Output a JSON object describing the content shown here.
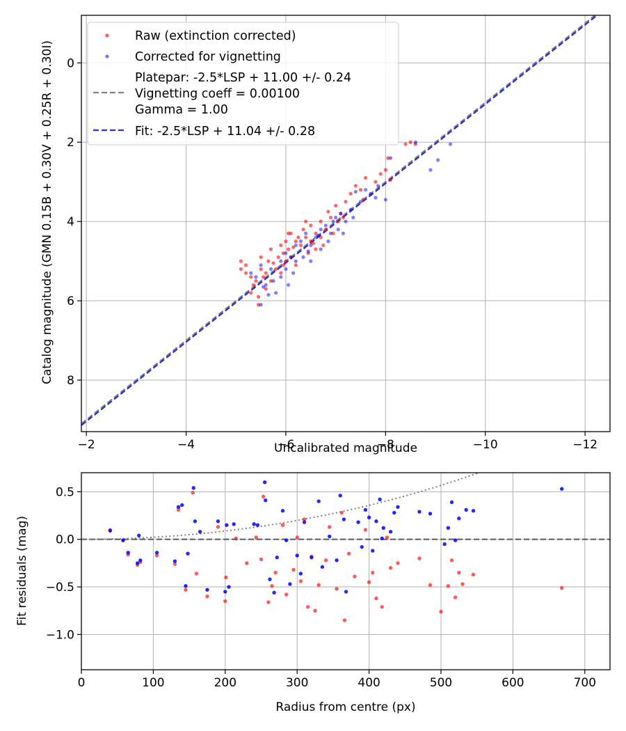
{
  "chart_data": [
    {
      "type": "scatter",
      "xlabel": "Uncalibrated magnitude",
      "ylabel": "Catalog magnitude (GMN 0.15B + 0.30V + 0.25R + 0.30I)",
      "xlim": [
        -1.9,
        -12.5
      ],
      "ylim": [
        9.3,
        -1.2
      ],
      "x_ticks": [
        -2,
        -4,
        -6,
        -8,
        -10,
        -12
      ],
      "x_tick_labels": [
        "−2",
        "−4",
        "−6",
        "−8",
        "−10",
        "−12"
      ],
      "y_ticks": [
        0,
        2,
        4,
        6,
        8
      ],
      "y_tick_labels": [
        "0",
        "2",
        "4",
        "6",
        "8"
      ],
      "grid": true,
      "legend_position": "top-left",
      "legend": {
        "raw": "Raw (extinction corrected)",
        "corrected": "Corrected for vignetting",
        "platepar_lines": [
          "Platepar: -2.5*LSP + 11.00 +/- 0.24",
          "Vignetting coeff = 0.00100",
          "Gamma = 1.00"
        ],
        "fit": "Fit: -2.5*LSP + 11.04 +/- 0.28"
      },
      "lines": [
        {
          "name": "Platepar",
          "slope": -2.5,
          "intercept": 11.0,
          "color": "#7f7f7f"
        },
        {
          "name": "Fit",
          "slope": -2.5,
          "intercept": 11.04,
          "color": "#2b2bd8"
        }
      ],
      "series": [
        {
          "name": "Raw (extinction corrected)",
          "color": "#ff0000",
          "points": [
            [
              -5.1,
              5.0
            ],
            [
              -5.1,
              5.2
            ],
            [
              -5.2,
              5.3
            ],
            [
              -5.2,
              5.1
            ],
            [
              -5.3,
              5.4
            ],
            [
              -5.35,
              5.6
            ],
            [
              -5.4,
              5.5
            ],
            [
              -5.45,
              6.1
            ],
            [
              -5.5,
              5.2
            ],
            [
              -5.5,
              4.9
            ],
            [
              -5.55,
              5.4
            ],
            [
              -5.6,
              5.3
            ],
            [
              -5.65,
              5.0
            ],
            [
              -5.7,
              4.7
            ],
            [
              -5.7,
              5.5
            ],
            [
              -5.8,
              5.2
            ],
            [
              -5.85,
              4.9
            ],
            [
              -5.9,
              4.6
            ],
            [
              -5.9,
              5.3
            ],
            [
              -5.95,
              4.8
            ],
            [
              -6.0,
              4.5
            ],
            [
              -6.0,
              5.0
            ],
            [
              -6.05,
              4.7
            ],
            [
              -6.1,
              4.3
            ],
            [
              -6.1,
              4.9
            ],
            [
              -6.2,
              4.5
            ],
            [
              -6.2,
              5.1
            ],
            [
              -6.25,
              4.4
            ],
            [
              -6.3,
              4.6
            ],
            [
              -6.35,
              4.2
            ],
            [
              -6.4,
              4.4
            ],
            [
              -6.45,
              4.8
            ],
            [
              -6.5,
              4.1
            ],
            [
              -6.5,
              4.5
            ],
            [
              -6.6,
              4.3
            ],
            [
              -6.6,
              4.7
            ],
            [
              -6.7,
              4.0
            ],
            [
              -6.7,
              4.4
            ],
            [
              -6.8,
              4.2
            ],
            [
              -6.9,
              3.9
            ],
            [
              -6.95,
              4.3
            ],
            [
              -7.0,
              3.6
            ],
            [
              -7.05,
              4.0
            ],
            [
              -7.1,
              3.8
            ],
            [
              -7.2,
              3.5
            ],
            [
              -7.3,
              3.3
            ],
            [
              -7.4,
              3.1
            ],
            [
              -7.5,
              3.2
            ],
            [
              -7.6,
              2.9
            ],
            [
              -7.8,
              3.0
            ],
            [
              -7.9,
              2.8
            ],
            [
              -8.0,
              2.7
            ],
            [
              -8.05,
              2.4
            ],
            [
              -8.1,
              2.95
            ],
            [
              -8.4,
              2.05
            ],
            [
              -8.5,
              2.0
            ],
            [
              -8.6,
              2.05
            ],
            [
              -5.3,
              5.8
            ],
            [
              -5.6,
              5.7
            ],
            [
              -5.95,
              5.1
            ],
            [
              -6.15,
              4.65
            ],
            [
              -6.55,
              4.55
            ],
            [
              -6.85,
              3.75
            ],
            [
              -7.15,
              3.9
            ],
            [
              -5.45,
              5.9
            ],
            [
              -6.4,
              4.0
            ],
            [
              -7.55,
              3.45
            ],
            [
              -6.75,
              4.6
            ],
            [
              -5.75,
              5.05
            ],
            [
              -6.05,
              4.3
            ]
          ]
        },
        {
          "name": "Corrected for vignetting",
          "color": "#0000ff",
          "points": [
            [
              -5.3,
              5.3
            ],
            [
              -5.4,
              5.4
            ],
            [
              -5.5,
              5.1
            ],
            [
              -5.5,
              6.1
            ],
            [
              -5.6,
              5.6
            ],
            [
              -5.7,
              5.2
            ],
            [
              -5.75,
              5.5
            ],
            [
              -5.8,
              5.8
            ],
            [
              -5.9,
              5.0
            ],
            [
              -5.9,
              5.4
            ],
            [
              -6.0,
              4.8
            ],
            [
              -6.0,
              5.2
            ],
            [
              -6.05,
              5.6
            ],
            [
              -6.1,
              4.9
            ],
            [
              -6.2,
              4.6
            ],
            [
              -6.2,
              5.0
            ],
            [
              -6.3,
              4.5
            ],
            [
              -6.35,
              4.9
            ],
            [
              -6.4,
              4.3
            ],
            [
              -6.5,
              4.6
            ],
            [
              -6.5,
              5.0
            ],
            [
              -6.6,
              4.4
            ],
            [
              -6.7,
              4.2
            ],
            [
              -6.7,
              4.7
            ],
            [
              -6.8,
              4.1
            ],
            [
              -6.85,
              4.5
            ],
            [
              -6.9,
              4.3
            ],
            [
              -7.0,
              3.9
            ],
            [
              -7.05,
              4.2
            ],
            [
              -7.1,
              3.8
            ],
            [
              -7.2,
              4.0
            ],
            [
              -7.3,
              3.7
            ],
            [
              -7.35,
              3.9
            ],
            [
              -7.5,
              3.5
            ],
            [
              -7.6,
              3.2
            ],
            [
              -7.7,
              3.3
            ],
            [
              -7.8,
              3.4
            ],
            [
              -7.85,
              3.1
            ],
            [
              -8.0,
              3.45
            ],
            [
              -8.1,
              2.4
            ],
            [
              -8.6,
              2.0
            ],
            [
              -8.9,
              2.7
            ],
            [
              -9.05,
              2.45
            ],
            [
              -9.3,
              2.05
            ],
            [
              -5.55,
              5.65
            ],
            [
              -6.45,
              4.75
            ],
            [
              -6.95,
              4.0
            ],
            [
              -7.4,
              3.25
            ],
            [
              -6.15,
              5.3
            ],
            [
              -5.65,
              5.85
            ],
            [
              -6.65,
              4.35
            ],
            [
              -7.15,
              4.3
            ]
          ]
        }
      ]
    },
    {
      "type": "scatter",
      "xlabel": "Radius from centre (px)",
      "ylabel": "Fit residuals (mag)",
      "xlim": [
        0,
        735
      ],
      "ylim": [
        -1.37,
        0.7
      ],
      "x_ticks": [
        0,
        100,
        200,
        300,
        400,
        500,
        600,
        700
      ],
      "x_tick_labels": [
        "0",
        "100",
        "200",
        "300",
        "400",
        "500",
        "600",
        "700"
      ],
      "y_ticks": [
        0.5,
        0.0,
        -0.5,
        -1.0
      ],
      "y_tick_labels": [
        "0.5",
        "0.0",
        "−0.5",
        "−1.0"
      ],
      "grid": true,
      "lines": [
        {
          "name": "zero",
          "style": "dashed",
          "color": "#606060",
          "value": 0
        },
        {
          "name": "vignetting curve",
          "style": "dotted",
          "color": "#808080",
          "formula": "-2.5*log10(cos(0.001*r)^4)"
        }
      ],
      "series": [
        {
          "name": "Raw",
          "color": "#ff0000",
          "points": [
            [
              40,
              0.1
            ],
            [
              58,
              -0.01
            ],
            [
              65,
              -0.16
            ],
            [
              78,
              -0.27
            ],
            [
              82,
              -0.24
            ],
            [
              105,
              -0.17
            ],
            [
              130,
              -0.26
            ],
            [
              135,
              0.31
            ],
            [
              145,
              -0.53
            ],
            [
              155,
              0.49
            ],
            [
              160,
              -0.36
            ],
            [
              175,
              -0.6
            ],
            [
              190,
              0.13
            ],
            [
              200,
              -0.65
            ],
            [
              201,
              -0.4
            ],
            [
              215,
              0.01
            ],
            [
              230,
              -0.25
            ],
            [
              243,
              0.02
            ],
            [
              250,
              -0.21
            ],
            [
              253,
              0.45
            ],
            [
              260,
              -0.66
            ],
            [
              265,
              -0.49
            ],
            [
              270,
              -0.35
            ],
            [
              280,
              0.15
            ],
            [
              285,
              -0.58
            ],
            [
              295,
              -0.32
            ],
            [
              300,
              0.02
            ],
            [
              305,
              -0.44
            ],
            [
              310,
              0.21
            ],
            [
              315,
              -0.71
            ],
            [
              320,
              -0.18
            ],
            [
              325,
              -0.75
            ],
            [
              330,
              -0.48
            ],
            [
              340,
              -0.22
            ],
            [
              345,
              0.13
            ],
            [
              355,
              -0.52
            ],
            [
              362,
              0.28
            ],
            [
              366,
              -0.85
            ],
            [
              372,
              -0.15
            ],
            [
              380,
              -0.39
            ],
            [
              395,
              0.1
            ],
            [
              400,
              -0.45
            ],
            [
              405,
              -0.35
            ],
            [
              410,
              -0.62
            ],
            [
              418,
              -0.71
            ],
            [
              425,
              0.02
            ],
            [
              430,
              -0.3
            ],
            [
              440,
              -0.25
            ],
            [
              470,
              -0.2
            ],
            [
              485,
              -0.48
            ],
            [
              500,
              -0.76
            ],
            [
              510,
              -0.49
            ],
            [
              515,
              -0.22
            ],
            [
              520,
              -0.61
            ],
            [
              525,
              -0.35
            ],
            [
              530,
              -0.47
            ],
            [
              545,
              -0.37
            ],
            [
              668,
              -0.51
            ]
          ]
        },
        {
          "name": "Corrected",
          "color": "#0000ff",
          "points": [
            [
              40,
              0.09
            ],
            [
              58,
              -0.01
            ],
            [
              65,
              -0.14
            ],
            [
              78,
              -0.25
            ],
            [
              80,
              0.04
            ],
            [
              82,
              -0.22
            ],
            [
              105,
              -0.14
            ],
            [
              130,
              -0.23
            ],
            [
              135,
              0.34
            ],
            [
              140,
              0.36
            ],
            [
              145,
              -0.49
            ],
            [
              148,
              -0.15
            ],
            [
              156,
              0.54
            ],
            [
              158,
              0.19
            ],
            [
              165,
              0.08
            ],
            [
              175,
              -0.53
            ],
            [
              190,
              0.19
            ],
            [
              200,
              -0.55
            ],
            [
              202,
              0.15
            ],
            [
              205,
              -0.5
            ],
            [
              212,
              0.16
            ],
            [
              240,
              0.16
            ],
            [
              245,
              0.15
            ],
            [
              255,
              0.6
            ],
            [
              256,
              0.41
            ],
            [
              262,
              -0.42
            ],
            [
              268,
              -0.56
            ],
            [
              272,
              -0.19
            ],
            [
              280,
              0.3
            ],
            [
              285,
              -0.01
            ],
            [
              290,
              -0.47
            ],
            [
              300,
              -0.17
            ],
            [
              305,
              -0.36
            ],
            [
              310,
              0.18
            ],
            [
              320,
              -0.19
            ],
            [
              330,
              0.4
            ],
            [
              335,
              -0.29
            ],
            [
              345,
              0.03
            ],
            [
              355,
              -0.22
            ],
            [
              360,
              0.46
            ],
            [
              365,
              0.21
            ],
            [
              368,
              -0.55
            ],
            [
              385,
              0.18
            ],
            [
              390,
              -0.08
            ],
            [
              395,
              0.31
            ],
            [
              400,
              0.23
            ],
            [
              405,
              -0.12
            ],
            [
              410,
              0.19
            ],
            [
              415,
              0.42
            ],
            [
              418,
              0.01
            ],
            [
              420,
              0.12
            ],
            [
              430,
              0.08
            ],
            [
              435,
              0.28
            ],
            [
              440,
              0.34
            ],
            [
              470,
              0.29
            ],
            [
              485,
              0.27
            ],
            [
              505,
              -0.05
            ],
            [
              510,
              0.12
            ],
            [
              515,
              0.39
            ],
            [
              520,
              -0.01
            ],
            [
              525,
              0.22
            ],
            [
              535,
              0.31
            ],
            [
              545,
              0.3
            ],
            [
              668,
              0.53
            ]
          ]
        }
      ]
    }
  ]
}
